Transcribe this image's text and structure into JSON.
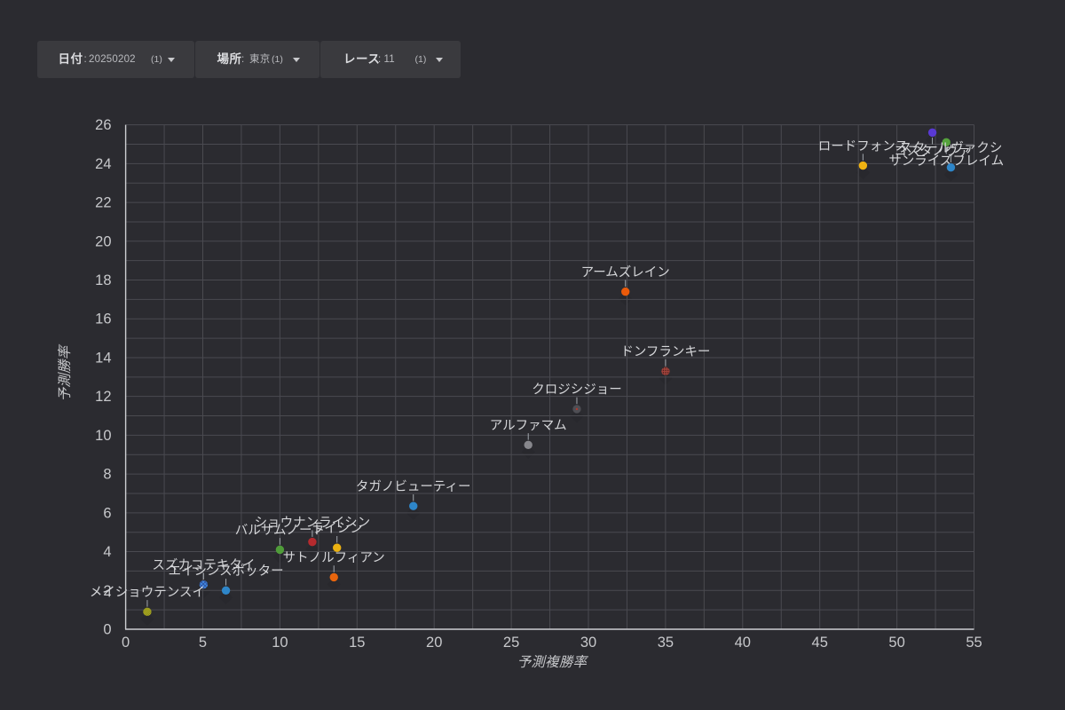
{
  "app": {
    "name": "race-prediction-dashboard"
  },
  "filters": [
    {
      "id": "date",
      "label": "日付",
      "value": "20250202",
      "count": "(1)"
    },
    {
      "id": "place",
      "label": "場所",
      "value": "東京",
      "count": "(1)"
    },
    {
      "id": "race",
      "label": "レース",
      "value": "11",
      "count": "(1)"
    }
  ],
  "chart_data": {
    "type": "scatter",
    "title": "",
    "xlabel": "予測複勝率",
    "ylabel": "予測勝率",
    "xlim": [
      0,
      55
    ],
    "ylim": [
      0,
      26
    ],
    "x_tick_step": 5,
    "x_grid_step": 2.5,
    "y_tick_step": 2,
    "y_grid_step": 1,
    "grid": true,
    "legend_position": "none",
    "points": [
      {
        "name": "コスタノヴァ",
        "x": 52.3,
        "y": 25.6,
        "color": "#5939d3",
        "pattern": "solid"
      },
      {
        "name": "サンライズフレイム",
        "x": 53.2,
        "y": 25.1,
        "color": "#55a23c",
        "pattern": "solid"
      },
      {
        "name": "スタールヴァクシ",
        "x": 53.5,
        "y": 23.8,
        "color": "#2e86c9",
        "pattern": "solid"
      },
      {
        "name": "ロードフォンス",
        "x": 47.8,
        "y": 23.9,
        "color": "#f0b312",
        "pattern": "solid"
      },
      {
        "name": "アームズレイン",
        "x": 32.4,
        "y": 17.4,
        "color": "#ea5a0a",
        "pattern": "solid"
      },
      {
        "name": "ドンフランキー",
        "x": 35.0,
        "y": 13.3,
        "color": "#a5443c",
        "pattern": "dots",
        "decal": "#3c1b1a"
      },
      {
        "name": "クロジシジョー",
        "x": 29.25,
        "y": 11.35,
        "color": "#4e4e54",
        "pattern": "reddot",
        "decal": "#b03a30"
      },
      {
        "name": "アルファマム",
        "x": 26.1,
        "y": 9.5,
        "color": "#87878c",
        "pattern": "solid"
      },
      {
        "name": "タガノビューティー",
        "x": 18.65,
        "y": 6.35,
        "color": "#2e86c9",
        "pattern": "solid"
      },
      {
        "name": "ライシン",
        "x": 13.7,
        "y": 4.2,
        "color": "#ecb211",
        "pattern": "solid"
      },
      {
        "name": "ショウナンライシン",
        "x": 12.1,
        "y": 4.5,
        "color": "#b52a2e",
        "pattern": "solid"
      },
      {
        "name": "バルサムノート",
        "x": 10.0,
        "y": 4.1,
        "color": "#4f9c39",
        "pattern": "solid"
      },
      {
        "name": "サトノルフィアン",
        "x": 13.5,
        "y": 2.68,
        "color": "#e8650d",
        "pattern": "solid"
      },
      {
        "name": "エイシンスポッター",
        "x": 6.5,
        "y": 2.0,
        "color": "#2e86c9",
        "pattern": "solid"
      },
      {
        "name": "スズカコテキタイ",
        "x": 5.05,
        "y": 2.3,
        "color": "#3f86dc",
        "pattern": "cross",
        "decal": "#26337e"
      },
      {
        "name": "メイショウテンスイ",
        "x": 1.4,
        "y": 0.9,
        "color": "#e6c81f",
        "pattern": "diag",
        "decal": "#53711d"
      }
    ]
  },
  "colors": {
    "background": "#2b2b30",
    "filter_box": "#3a3a3e",
    "gridline": "#4a4a50",
    "axis_line": "#cdced2",
    "tick_label": "#c7c8cb",
    "point_label": "#d5d6d9",
    "label_line": "#a2a7ad",
    "shadow": "#28282d"
  }
}
